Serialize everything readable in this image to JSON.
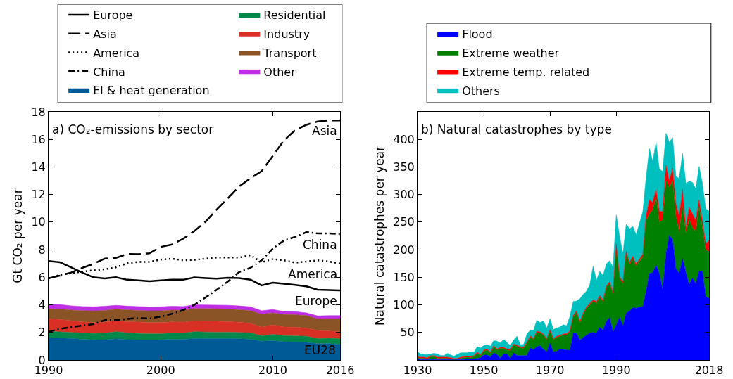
{
  "chart_data": [
    {
      "type": "line",
      "title": "a) CO₂-emissions by sector",
      "ylabel": "Gt CO₂ per year",
      "stacked": true,
      "legend": "top",
      "x": [
        1990,
        1991,
        1992,
        1993,
        1994,
        1995,
        1996,
        1997,
        1998,
        1999,
        2000,
        2001,
        2002,
        2003,
        2004,
        2005,
        2006,
        2007,
        2008,
        2009,
        2010,
        2011,
        2012,
        2013,
        2014,
        2015,
        2016
      ],
      "xlim": [
        1990,
        2016
      ],
      "xticks": [
        1990,
        2000,
        2010,
        2016
      ],
      "ylim": [
        0,
        18
      ],
      "yticks": [
        0,
        2,
        4,
        6,
        8,
        10,
        12,
        14,
        16,
        18
      ],
      "series": [
        {
          "name": "Europe",
          "color": "#000000",
          "line_style": "solid",
          "values": [
            7.18,
            7.09,
            6.72,
            6.34,
            6.0,
            5.92,
            6.0,
            5.82,
            5.77,
            5.71,
            5.77,
            5.83,
            5.82,
            5.99,
            5.94,
            5.9,
            5.97,
            5.94,
            5.83,
            5.41,
            5.61,
            5.53,
            5.44,
            5.34,
            5.1,
            5.08,
            5.05
          ]
        },
        {
          "name": "Asia",
          "color": "#000000",
          "line_style": "dashed",
          "values": [
            5.92,
            6.12,
            6.34,
            6.68,
            6.97,
            7.35,
            7.4,
            7.69,
            7.67,
            7.74,
            8.2,
            8.38,
            8.79,
            9.35,
            10.03,
            10.92,
            11.73,
            12.59,
            13.18,
            13.69,
            14.8,
            15.94,
            16.67,
            17.06,
            17.3,
            17.38,
            17.38
          ]
        },
        {
          "name": "America",
          "color": "#000000",
          "line_style": "dotted",
          "values": [
            5.92,
            6.17,
            6.29,
            6.41,
            6.5,
            6.58,
            6.72,
            7.02,
            7.11,
            7.11,
            7.28,
            7.35,
            7.23,
            7.26,
            7.35,
            7.43,
            7.43,
            7.43,
            7.6,
            7.09,
            7.31,
            7.23,
            7.06,
            7.14,
            7.23,
            7.14,
            7.0
          ]
        },
        {
          "name": "China",
          "color": "#000000",
          "line_style": "dashdot",
          "values": [
            2.04,
            2.26,
            2.38,
            2.5,
            2.6,
            2.89,
            2.89,
            2.98,
            3.04,
            3.01,
            3.15,
            3.35,
            3.62,
            4.0,
            4.54,
            5.1,
            5.7,
            6.38,
            6.68,
            7.23,
            8.08,
            8.67,
            8.93,
            9.27,
            9.18,
            9.18,
            9.13
          ]
        },
        {
          "name": "El & heat generation",
          "type": "area",
          "color": "#005a96",
          "values": [
            1.62,
            1.6,
            1.55,
            1.5,
            1.46,
            1.47,
            1.53,
            1.48,
            1.46,
            1.44,
            1.46,
            1.5,
            1.49,
            1.56,
            1.55,
            1.55,
            1.56,
            1.54,
            1.5,
            1.36,
            1.4,
            1.32,
            1.3,
            1.28,
            1.18,
            1.18,
            1.14
          ]
        },
        {
          "name": "Residential",
          "type": "area",
          "color": "#00884a",
          "values": [
            0.46,
            0.44,
            0.45,
            0.46,
            0.46,
            0.48,
            0.52,
            0.49,
            0.47,
            0.46,
            0.44,
            0.46,
            0.46,
            0.49,
            0.48,
            0.47,
            0.46,
            0.46,
            0.47,
            0.39,
            0.46,
            0.44,
            0.45,
            0.44,
            0.38,
            0.4,
            0.4
          ]
        },
        {
          "name": "Industry",
          "type": "area",
          "color": "#d83024",
          "values": [
            0.9,
            0.91,
            0.85,
            0.81,
            0.8,
            0.8,
            0.79,
            0.81,
            0.82,
            0.82,
            0.82,
            0.8,
            0.79,
            0.8,
            0.8,
            0.78,
            0.76,
            0.74,
            0.69,
            0.63,
            0.69,
            0.64,
            0.63,
            0.6,
            0.58,
            0.52,
            0.51
          ]
        },
        {
          "name": "Transport",
          "type": "area",
          "color": "#8b5426",
          "values": [
            0.74,
            0.75,
            0.77,
            0.81,
            0.84,
            0.85,
            0.84,
            0.85,
            0.85,
            0.85,
            0.85,
            0.86,
            0.86,
            0.89,
            0.9,
            0.92,
            0.92,
            0.91,
            0.92,
            0.94,
            0.87,
            0.9,
            0.9,
            0.91,
            0.86,
            0.9,
            0.94
          ]
        },
        {
          "name": "Other",
          "type": "area",
          "color": "#bf2de6",
          "values": [
            0.32,
            0.32,
            0.31,
            0.3,
            0.3,
            0.3,
            0.28,
            0.28,
            0.28,
            0.28,
            0.29,
            0.28,
            0.28,
            0.26,
            0.26,
            0.26,
            0.27,
            0.27,
            0.28,
            0.25,
            0.24,
            0.22,
            0.22,
            0.19,
            0.2,
            0.22,
            0.23
          ]
        }
      ],
      "annotations": [
        "EU28"
      ]
    },
    {
      "type": "area",
      "title": "b) Natural catastrophes by type",
      "ylabel": "Natural catastrophes per year",
      "stacked": true,
      "legend": "top",
      "x": [
        1930,
        1931,
        1932,
        1933,
        1934,
        1935,
        1936,
        1937,
        1938,
        1939,
        1940,
        1941,
        1942,
        1943,
        1944,
        1945,
        1946,
        1947,
        1948,
        1949,
        1950,
        1951,
        1952,
        1953,
        1954,
        1955,
        1956,
        1957,
        1958,
        1959,
        1960,
        1961,
        1962,
        1963,
        1964,
        1965,
        1966,
        1967,
        1968,
        1969,
        1970,
        1971,
        1972,
        1973,
        1974,
        1975,
        1976,
        1977,
        1978,
        1979,
        1980,
        1981,
        1982,
        1983,
        1984,
        1985,
        1986,
        1987,
        1988,
        1989,
        1990,
        1991,
        1992,
        1993,
        1994,
        1995,
        1996,
        1997,
        1998,
        1999,
        2000,
        2001,
        2002,
        2003,
        2004,
        2005,
        2006,
        2007,
        2008,
        2009,
        2010,
        2011,
        2012,
        2013,
        2014,
        2015,
        2016,
        2017,
        2018
      ],
      "xlim": [
        1930,
        2018
      ],
      "xticks": [
        1930,
        1950,
        1970,
        1990,
        2018
      ],
      "ylim": [
        0,
        450
      ],
      "yticks": [
        50,
        100,
        150,
        200,
        250,
        300,
        350,
        400
      ],
      "series": [
        {
          "name": "Flood",
          "color": "#0000ff",
          "values": [
            2,
            1,
            1,
            1,
            1,
            1,
            1,
            1,
            1,
            1,
            1,
            0,
            1,
            1,
            1,
            2,
            2,
            2,
            3,
            4,
            9,
            9,
            5,
            13,
            10,
            3,
            11,
            11,
            3,
            13,
            8,
            8,
            8,
            8,
            22,
            19,
            24,
            26,
            19,
            15,
            31,
            15,
            16,
            20,
            19,
            18,
            18,
            49,
            48,
            36,
            41,
            45,
            49,
            50,
            49,
            60,
            54,
            70,
            77,
            51,
            64,
            78,
            62,
            85,
            89,
            95,
            94,
            96,
            97,
            125,
            157,
            158,
            172,
            157,
            128,
            193,
            226,
            219,
            166,
            157,
            185,
            159,
            137,
            149,
            138,
            161,
            161,
            115,
            112
          ]
        },
        {
          "name": "Extreme weather",
          "color": "#008000",
          "values": [
            2,
            2,
            2,
            1,
            5,
            5,
            2,
            2,
            2,
            2,
            1,
            2,
            1,
            2,
            3,
            3,
            2,
            4,
            9,
            4,
            7,
            9,
            7,
            11,
            8,
            18,
            10,
            7,
            14,
            14,
            17,
            14,
            13,
            22,
            20,
            18,
            26,
            23,
            26,
            22,
            22,
            22,
            25,
            23,
            26,
            28,
            33,
            29,
            38,
            31,
            41,
            48,
            51,
            56,
            54,
            54,
            51,
            61,
            62,
            69,
            143,
            70,
            76,
            108,
            84,
            89,
            76,
            83,
            90,
            127,
            108,
            114,
            123,
            93,
            126,
            132,
            86,
            106,
            95,
            74,
            96,
            70,
            118,
            91,
            95,
            117,
            79,
            84,
            85
          ]
        },
        {
          "name": "Extreme temp. related",
          "color": "#ff0000",
          "values": [
            2,
            2,
            2,
            2,
            2,
            2,
            2,
            2,
            2,
            2,
            2,
            1,
            1,
            2,
            2,
            2,
            2,
            2,
            2,
            2,
            2,
            2,
            2,
            2,
            2,
            2,
            2,
            2,
            2,
            2,
            2,
            2,
            2,
            2,
            2,
            2,
            2,
            2,
            2,
            2,
            2,
            2,
            2,
            2,
            2,
            2,
            2,
            3,
            3,
            3,
            3,
            3,
            3,
            3,
            3,
            3,
            3,
            3,
            3,
            3,
            3,
            3,
            4,
            4,
            4,
            4,
            4,
            4,
            5,
            10,
            25,
            14,
            15,
            20,
            15,
            28,
            13,
            23,
            23,
            30,
            28,
            11,
            22,
            25,
            20,
            12,
            13,
            11,
            20
          ]
        },
        {
          "name": "Others",
          "color": "#00bfbf",
          "values": [
            8,
            6,
            5,
            6,
            3,
            4,
            6,
            3,
            3,
            7,
            5,
            4,
            7,
            8,
            7,
            6,
            9,
            6,
            10,
            12,
            8,
            8,
            11,
            9,
            14,
            8,
            14,
            12,
            7,
            7,
            16,
            4,
            5,
            15,
            10,
            15,
            20,
            17,
            24,
            19,
            20,
            16,
            15,
            15,
            17,
            14,
            26,
            25,
            18,
            41,
            34,
            29,
            33,
            61,
            38,
            44,
            45,
            40,
            38,
            45,
            53,
            72,
            51,
            49,
            61,
            54,
            53,
            65,
            77,
            68,
            93,
            74,
            85,
            76,
            73,
            58,
            70,
            55,
            49,
            68,
            66,
            80,
            47,
            57,
            57,
            61,
            67,
            64,
            53
          ]
        }
      ]
    }
  ]
}
